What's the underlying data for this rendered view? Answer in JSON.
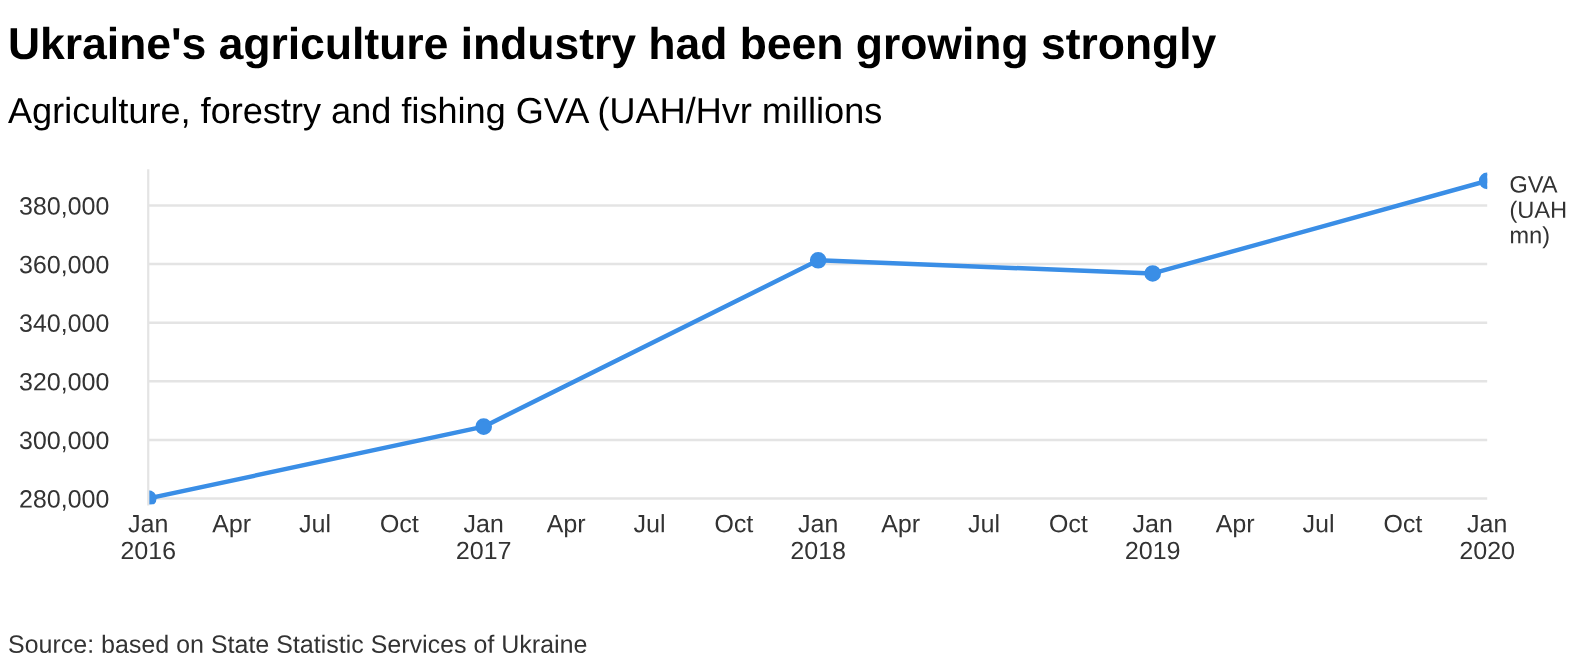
{
  "chart_data": {
    "type": "line",
    "title": "Ukraine's agriculture industry had been growing strongly",
    "subtitle": "Agriculture, forestry and fishing GVA (UAH/Hvr millions",
    "x": [
      "2016-01",
      "2017-01",
      "2018-01",
      "2019-01",
      "2020-01"
    ],
    "series": [
      {
        "name": "GVA (UAH mn)",
        "color": "#3a8ee6",
        "values": [
          280000,
          304500,
          361300,
          356800,
          388400
        ]
      }
    ],
    "ylim": [
      278000,
      392000
    ],
    "yticks": [
      {
        "value": 280000,
        "label": "280,000"
      },
      {
        "value": 300000,
        "label": "300,000"
      },
      {
        "value": 320000,
        "label": "320,000"
      },
      {
        "value": 340000,
        "label": "340,000"
      },
      {
        "value": 360000,
        "label": "360,000"
      },
      {
        "value": 380000,
        "label": "380,000"
      }
    ],
    "xlim": [
      "2016-01",
      "2020-01"
    ],
    "xticks": [
      {
        "value": "2016-01",
        "label": "Jan\n2016"
      },
      {
        "value": "2016-04",
        "label": "Apr"
      },
      {
        "value": "2016-07",
        "label": "Jul"
      },
      {
        "value": "2016-10",
        "label": "Oct"
      },
      {
        "value": "2017-01",
        "label": "Jan\n2017"
      },
      {
        "value": "2017-04",
        "label": "Apr"
      },
      {
        "value": "2017-07",
        "label": "Jul"
      },
      {
        "value": "2017-10",
        "label": "Oct"
      },
      {
        "value": "2018-01",
        "label": "Jan\n2018"
      },
      {
        "value": "2018-04",
        "label": "Apr"
      },
      {
        "value": "2018-07",
        "label": "Jul"
      },
      {
        "value": "2018-10",
        "label": "Oct"
      },
      {
        "value": "2019-01",
        "label": "Jan\n2019"
      },
      {
        "value": "2019-04",
        "label": "Apr"
      },
      {
        "value": "2019-07",
        "label": "Jul"
      },
      {
        "value": "2019-10",
        "label": "Oct"
      },
      {
        "value": "2020-01",
        "label": "Jan\n2020"
      }
    ],
    "grid": "y",
    "legend": "right",
    "marker": "circle",
    "line_style": "solid",
    "annotations": [
      "Source: based on State Statistic Services of Ukraine"
    ]
  }
}
